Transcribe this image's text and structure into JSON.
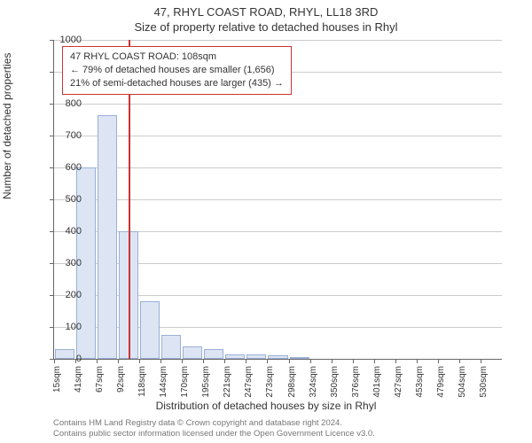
{
  "chart": {
    "type": "histogram",
    "title1": "47, RHYL COAST ROAD, RHYL, LL18 3RD",
    "title2": "Size of property relative to detached houses in Rhyl",
    "ylabel": "Number of detached properties",
    "xlabel": "Distribution of detached houses by size in Rhyl",
    "background_color": "#ffffff",
    "grid_color": "#cccccc",
    "bar_fill": "#dde5f4",
    "bar_stroke": "#9ab0d8",
    "marker_color": "#cc3333",
    "ylim": [
      0,
      1000
    ],
    "yticks": [
      0,
      100,
      200,
      300,
      400,
      500,
      600,
      700,
      800,
      900,
      1000
    ],
    "xticks": [
      "15sqm",
      "41sqm",
      "67sqm",
      "92sqm",
      "118sqm",
      "144sqm",
      "170sqm",
      "195sqm",
      "221sqm",
      "247sqm",
      "273sqm",
      "298sqm",
      "324sqm",
      "350sqm",
      "376sqm",
      "401sqm",
      "427sqm",
      "453sqm",
      "479sqm",
      "504sqm",
      "530sqm"
    ],
    "bars": [
      30,
      600,
      765,
      400,
      180,
      75,
      40,
      30,
      15,
      15,
      12,
      5,
      0,
      0,
      0,
      0,
      0,
      0,
      0,
      0
    ],
    "marker_position": 3.5,
    "annotation": {
      "line1": "47 RHYL COAST ROAD: 108sqm",
      "line2": "← 79% of detached houses are smaller (1,656)",
      "line3": "21% of semi-detached houses are larger (435) →"
    },
    "footer1": "Contains HM Land Registry data © Crown copyright and database right 2024.",
    "footer2": "Contains public sector information licensed under the Open Government Licence v3.0."
  }
}
